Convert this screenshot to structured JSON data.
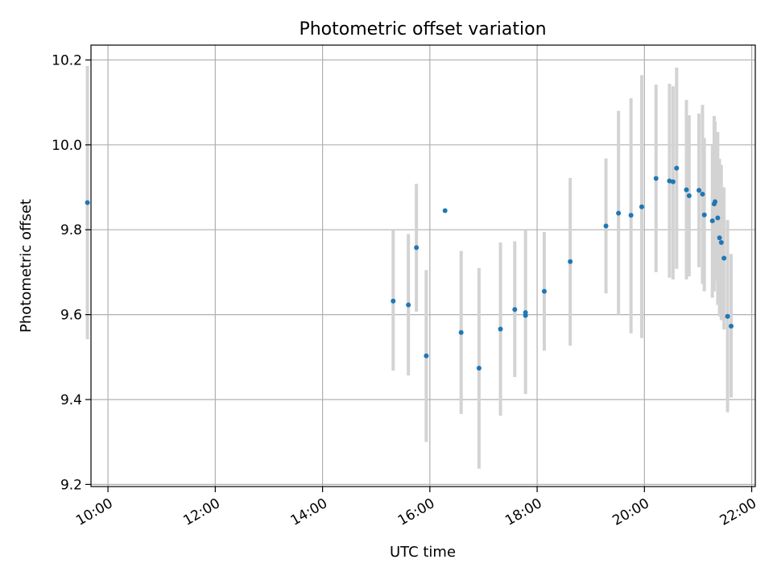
{
  "chart_data": {
    "type": "scatter",
    "title": "Photometric offset variation",
    "xlabel": "UTC time",
    "ylabel": "Photometric offset",
    "xlim": [
      "09:41",
      "22:04"
    ],
    "ylim": [
      9.195,
      10.235
    ],
    "x_ticks": [
      "10:00",
      "12:00",
      "14:00",
      "16:00",
      "18:00",
      "20:00",
      "22:00"
    ],
    "y_ticks": [
      "9.2",
      "9.4",
      "9.6",
      "9.8",
      "10.0",
      "10.2"
    ],
    "grid": true,
    "point_color": "#1f77b4",
    "errorbar_color": "#d3d3d3",
    "points": [
      {
        "x": "09:37",
        "y": 9.864,
        "lo": 9.542,
        "hi": 10.186
      },
      {
        "x": "15:19",
        "y": 9.632,
        "lo": 9.468,
        "hi": 9.8
      },
      {
        "x": "15:36",
        "y": 9.623,
        "lo": 9.457,
        "hi": 9.79
      },
      {
        "x": "15:45",
        "y": 9.758,
        "lo": 9.607,
        "hi": 9.908
      },
      {
        "x": "15:56",
        "y": 9.503,
        "lo": 9.3,
        "hi": 9.705
      },
      {
        "x": "16:17",
        "y": 9.845,
        "lo": 9.845,
        "hi": 9.845
      },
      {
        "x": "16:35",
        "y": 9.558,
        "lo": 9.366,
        "hi": 9.75
      },
      {
        "x": "16:55",
        "y": 9.474,
        "lo": 9.237,
        "hi": 9.71
      },
      {
        "x": "17:19",
        "y": 9.566,
        "lo": 9.362,
        "hi": 9.77
      },
      {
        "x": "17:35",
        "y": 9.612,
        "lo": 9.453,
        "hi": 9.773
      },
      {
        "x": "17:47",
        "y": 9.598,
        "lo": 9.413,
        "hi": 9.8
      },
      {
        "x": "17:47",
        "y": 9.605,
        "lo": 9.605,
        "hi": 9.605
      },
      {
        "x": "18:08",
        "y": 9.655,
        "lo": 9.515,
        "hi": 9.795
      },
      {
        "x": "18:37",
        "y": 9.725,
        "lo": 9.527,
        "hi": 9.922
      },
      {
        "x": "19:17",
        "y": 9.809,
        "lo": 9.65,
        "hi": 9.968
      },
      {
        "x": "19:31",
        "y": 9.839,
        "lo": 9.6,
        "hi": 10.08
      },
      {
        "x": "19:45",
        "y": 9.834,
        "lo": 9.556,
        "hi": 10.11
      },
      {
        "x": "19:57",
        "y": 9.854,
        "lo": 9.545,
        "hi": 10.164
      },
      {
        "x": "20:13",
        "y": 9.921,
        "lo": 9.7,
        "hi": 10.142
      },
      {
        "x": "20:28",
        "y": 9.915,
        "lo": 9.687,
        "hi": 10.144
      },
      {
        "x": "20:32",
        "y": 9.913,
        "lo": 9.683,
        "hi": 10.138
      },
      {
        "x": "20:36",
        "y": 9.945,
        "lo": 9.708,
        "hi": 10.182
      },
      {
        "x": "20:47",
        "y": 9.894,
        "lo": 9.683,
        "hi": 10.106
      },
      {
        "x": "20:50",
        "y": 9.88,
        "lo": 9.69,
        "hi": 10.07
      },
      {
        "x": "21:01",
        "y": 9.893,
        "lo": 9.712,
        "hi": 10.074
      },
      {
        "x": "21:05",
        "y": 9.884,
        "lo": 9.672,
        "hi": 10.094
      },
      {
        "x": "21:07",
        "y": 9.835,
        "lo": 9.655,
        "hi": 10.016
      },
      {
        "x": "21:16",
        "y": 9.821,
        "lo": 9.64,
        "hi": 9.998
      },
      {
        "x": "21:18",
        "y": 9.861,
        "lo": 9.655,
        "hi": 10.068
      },
      {
        "x": "21:19",
        "y": 9.866,
        "lo": 9.68,
        "hi": 10.055
      },
      {
        "x": "21:22",
        "y": 9.828,
        "lo": 9.623,
        "hi": 10.03
      },
      {
        "x": "21:24",
        "y": 9.781,
        "lo": 9.596,
        "hi": 9.967
      },
      {
        "x": "21:26",
        "y": 9.77,
        "lo": 9.587,
        "hi": 9.953
      },
      {
        "x": "21:29",
        "y": 9.733,
        "lo": 9.565,
        "hi": 9.9
      },
      {
        "x": "21:33",
        "y": 9.596,
        "lo": 9.37,
        "hi": 9.823
      },
      {
        "x": "21:37",
        "y": 9.573,
        "lo": 9.405,
        "hi": 9.743
      }
    ]
  }
}
